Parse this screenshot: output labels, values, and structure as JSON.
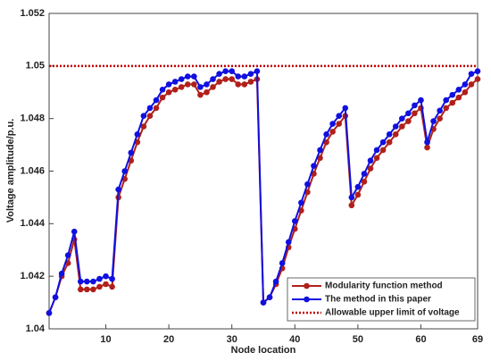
{
  "chart_data": {
    "type": "line",
    "xlabel": "Node location",
    "ylabel": "Voltage amplitude/p.u.",
    "x": [
      1,
      2,
      3,
      4,
      5,
      6,
      7,
      8,
      9,
      10,
      11,
      12,
      13,
      14,
      15,
      16,
      17,
      18,
      19,
      20,
      21,
      22,
      23,
      24,
      25,
      26,
      27,
      28,
      29,
      30,
      31,
      32,
      33,
      34,
      35,
      36,
      37,
      38,
      39,
      40,
      41,
      42,
      43,
      44,
      45,
      46,
      47,
      48,
      49,
      50,
      51,
      52,
      53,
      54,
      55,
      56,
      57,
      58,
      59,
      60,
      61,
      62,
      63,
      64,
      65,
      66,
      67,
      68,
      69
    ],
    "series": [
      {
        "name": "Modularity function method",
        "color": "#b0201a",
        "values": [
          1.0406,
          1.0412,
          1.042,
          1.0425,
          1.0434,
          1.0415,
          1.0415,
          1.0415,
          1.0416,
          1.0417,
          1.0416,
          1.045,
          1.0457,
          1.0464,
          1.0471,
          1.0477,
          1.0481,
          1.0484,
          1.0488,
          1.049,
          1.0491,
          1.0492,
          1.0493,
          1.0493,
          1.0489,
          1.049,
          1.0492,
          1.0494,
          1.0495,
          1.0495,
          1.0493,
          1.0493,
          1.0494,
          1.0495,
          1.041,
          1.0412,
          1.0417,
          1.0423,
          1.0431,
          1.0438,
          1.0445,
          1.0452,
          1.0459,
          1.0465,
          1.0471,
          1.0475,
          1.0478,
          1.0481,
          1.0447,
          1.0451,
          1.0456,
          1.0461,
          1.0465,
          1.0468,
          1.0471,
          1.0474,
          1.0477,
          1.0479,
          1.0482,
          1.0484,
          1.0469,
          1.0476,
          1.048,
          1.0484,
          1.0486,
          1.0488,
          1.049,
          1.0493,
          1.0495
        ]
      },
      {
        "name": "The method in this paper",
        "color": "#1010e0",
        "values": [
          1.0406,
          1.0412,
          1.0421,
          1.0428,
          1.0437,
          1.0418,
          1.0418,
          1.0418,
          1.0419,
          1.042,
          1.0419,
          1.0453,
          1.046,
          1.0467,
          1.0474,
          1.0481,
          1.0484,
          1.0487,
          1.0491,
          1.0493,
          1.0494,
          1.0495,
          1.0496,
          1.0496,
          1.0492,
          1.0493,
          1.0495,
          1.0497,
          1.0498,
          1.0498,
          1.0496,
          1.0496,
          1.0497,
          1.0498,
          1.041,
          1.0412,
          1.0418,
          1.0425,
          1.0433,
          1.0441,
          1.0448,
          1.0455,
          1.0462,
          1.0468,
          1.0474,
          1.0478,
          1.0481,
          1.0484,
          1.045,
          1.0454,
          1.0459,
          1.0464,
          1.0468,
          1.0471,
          1.0474,
          1.0477,
          1.048,
          1.0482,
          1.0485,
          1.0487,
          1.0471,
          1.0479,
          1.0483,
          1.0487,
          1.0489,
          1.0491,
          1.0493,
          1.0497,
          1.0498
        ]
      }
    ],
    "reference_line": {
      "name": "Allowable upper limit of voltage",
      "value": 1.05,
      "color": "#c00000"
    },
    "xlim": [
      1,
      69
    ],
    "xticks": [
      10,
      20,
      30,
      40,
      50,
      60,
      69
    ],
    "ylim": [
      1.04,
      1.052
    ],
    "yticks": [
      1.04,
      1.042,
      1.044,
      1.046,
      1.048,
      1.05,
      1.052
    ],
    "grid": false,
    "legend": "lower right"
  }
}
